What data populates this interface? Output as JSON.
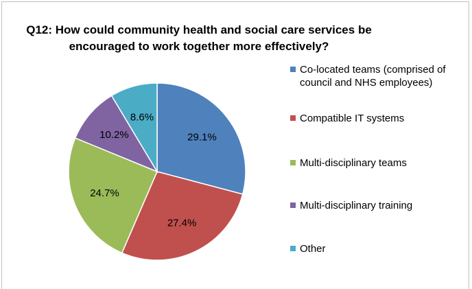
{
  "chart_data": {
    "type": "pie",
    "title": "Q12: How could community health and social care services be encouraged to work together more effectively?",
    "title_lines": [
      "Q12: How could community health and social care services be",
      "encouraged to work together more effectively?"
    ],
    "categories": [
      "Co-located teams (comprised of council and NHS employees)",
      "Compatible IT systems",
      "Multi-disciplinary teams",
      "Multi-disciplinary training",
      "Other"
    ],
    "values": [
      29.1,
      27.4,
      24.7,
      10.2,
      8.6
    ],
    "data_labels": [
      "29.1%",
      "27.4%",
      "24.7%",
      "10.2%",
      "8.6%"
    ],
    "colors": [
      "#4F81BD",
      "#C0504D",
      "#9BBB59",
      "#8064A2",
      "#4BACC6"
    ],
    "legend_position": "right",
    "start_angle": "top",
    "direction": "clockwise"
  }
}
